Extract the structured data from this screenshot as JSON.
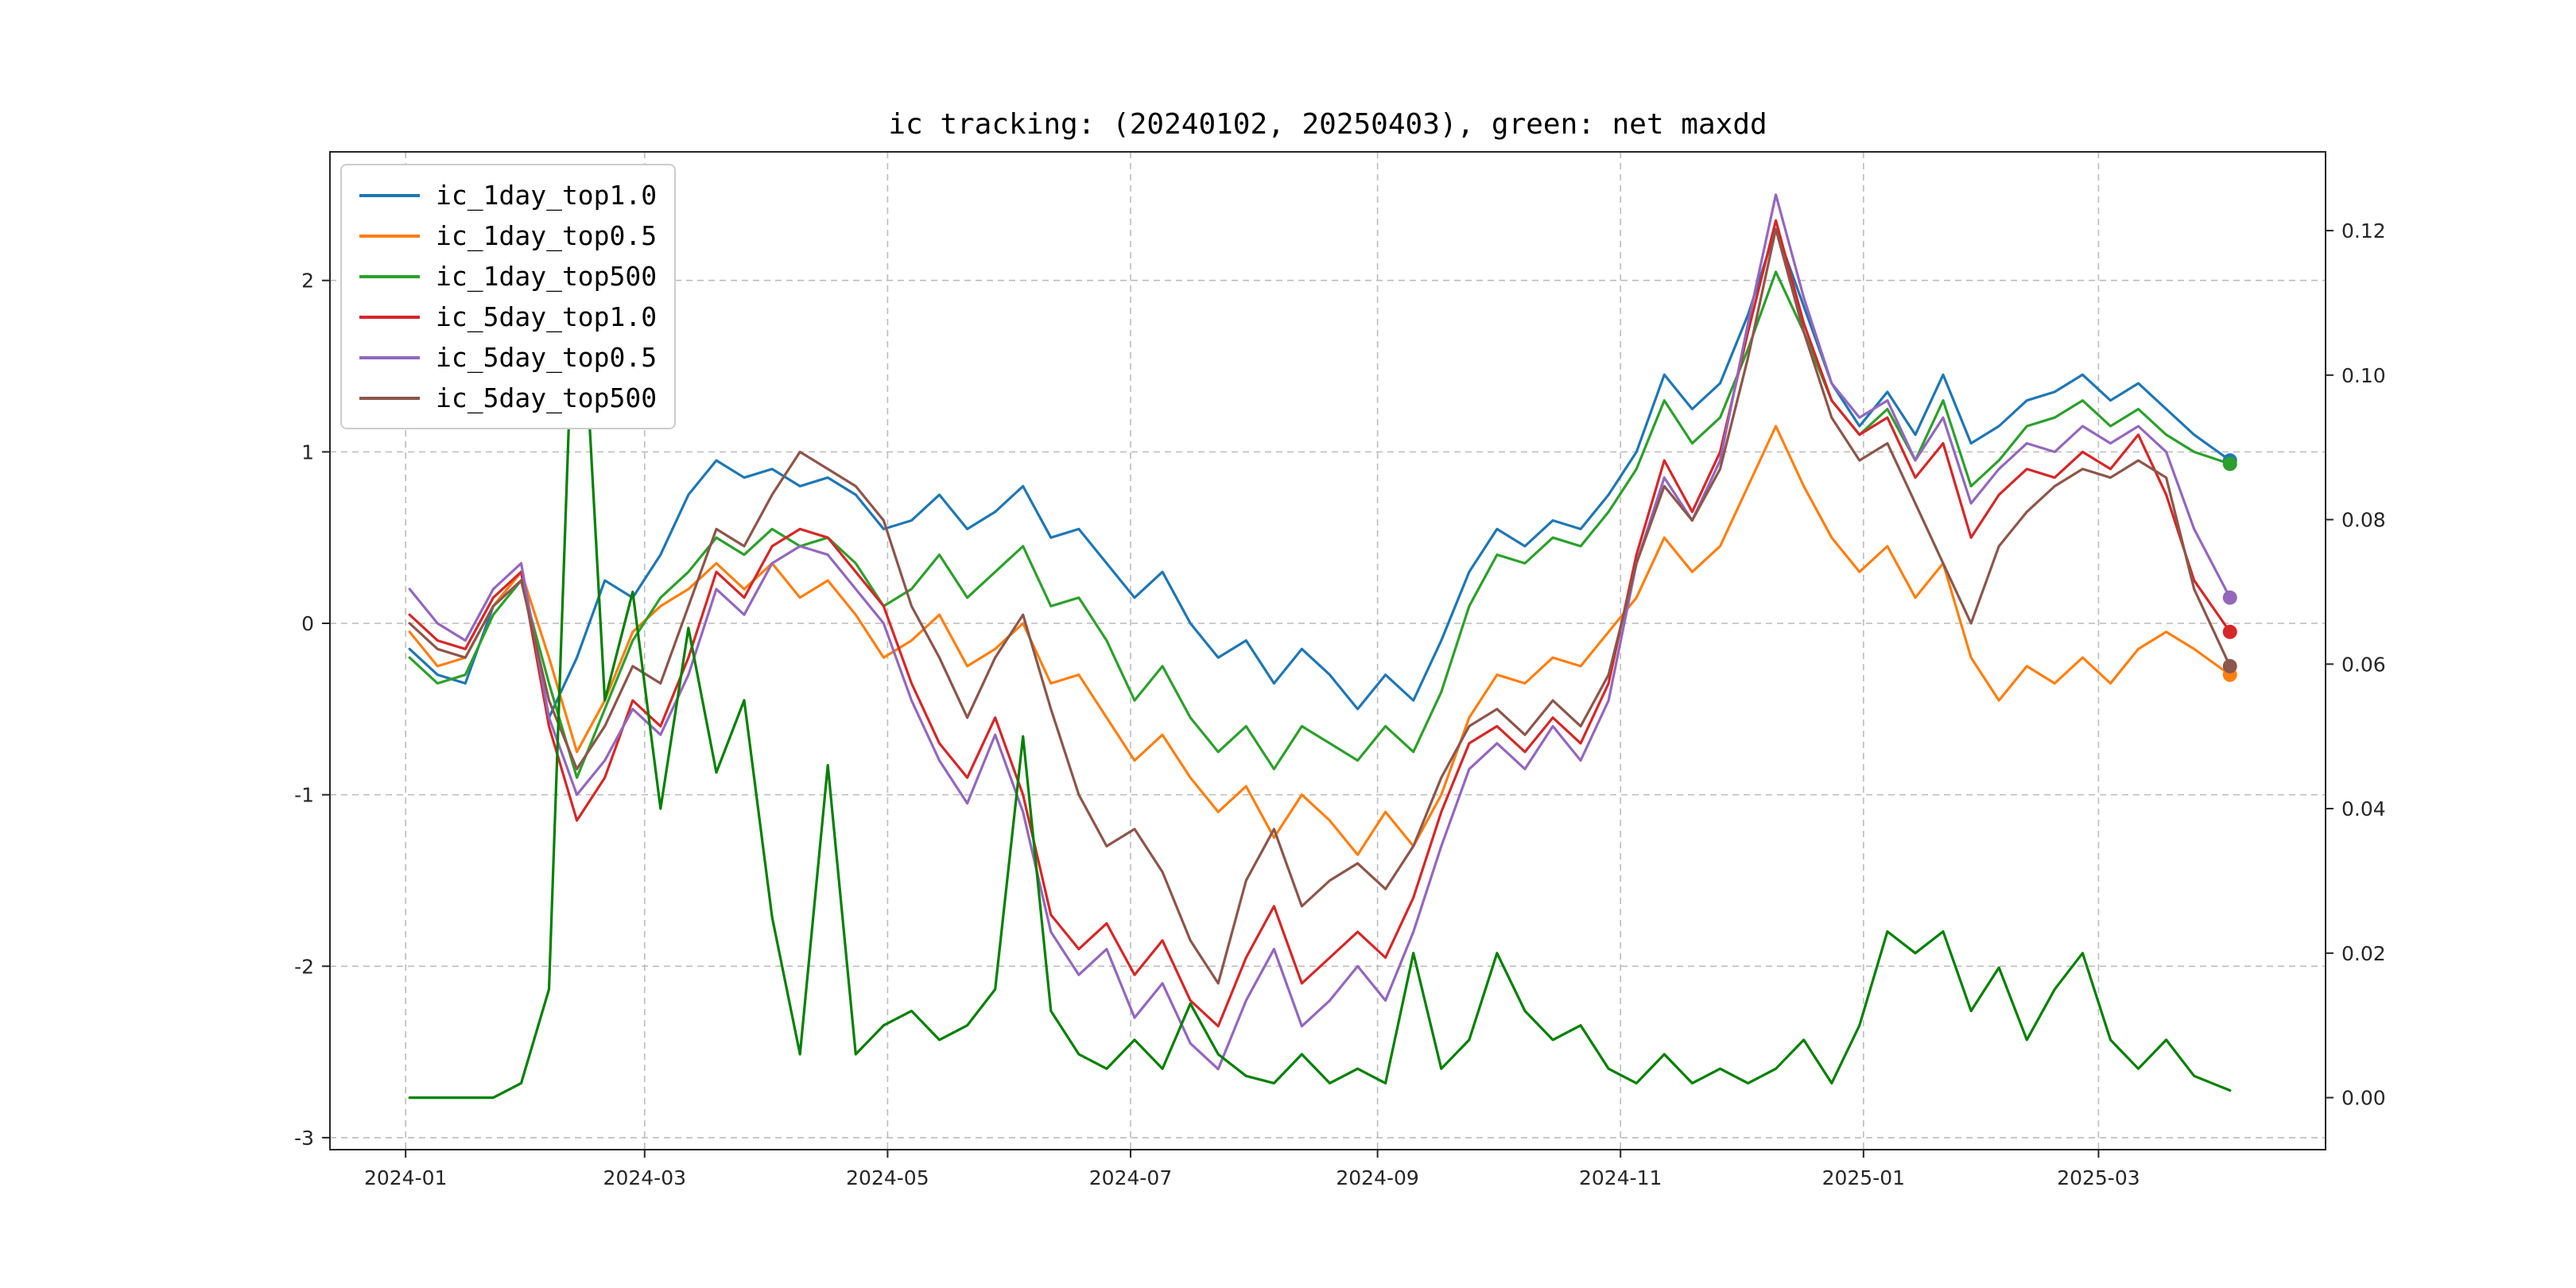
{
  "chart_data": {
    "type": "line",
    "title": "ic tracking: (20240102, 20250403), green: net maxdd",
    "grid": "dashed",
    "legend_position": "upper-left",
    "x_axis": {
      "range_days": [
        -20,
        481
      ],
      "tick_days": [
        -1,
        59,
        120,
        181,
        243,
        304,
        365,
        424
      ],
      "tick_labels": [
        "2024-01",
        "2024-03",
        "2024-05",
        "2024-07",
        "2024-09",
        "2024-11",
        "2025-01",
        "2025-03"
      ]
    },
    "left_axis": {
      "range": [
        -3.07,
        2.75
      ],
      "ticks": [
        -3,
        -2,
        -1,
        0,
        1,
        2
      ],
      "tick_labels": [
        "-3",
        "-2",
        "-1",
        "0",
        "1",
        "2"
      ]
    },
    "right_axis": {
      "range": [
        -0.0072,
        0.1309
      ],
      "ticks": [
        0,
        0.02,
        0.04,
        0.06,
        0.08,
        0.1,
        0.12
      ],
      "tick_labels": [
        "0.00",
        "0.02",
        "0.04",
        "0.06",
        "0.08",
        "0.10",
        "0.12"
      ]
    },
    "x_days": [
      0,
      7,
      14,
      21,
      28,
      35,
      42,
      49,
      56,
      63,
      70,
      77,
      84,
      91,
      98,
      105,
      112,
      119,
      126,
      133,
      140,
      147,
      154,
      161,
      168,
      175,
      182,
      189,
      196,
      203,
      210,
      217,
      224,
      231,
      238,
      245,
      252,
      259,
      266,
      273,
      280,
      287,
      294,
      301,
      308,
      315,
      322,
      329,
      336,
      343,
      350,
      357,
      364,
      371,
      378,
      385,
      392,
      399,
      406,
      413,
      420,
      427,
      434,
      441,
      448,
      457
    ],
    "series": [
      {
        "name": "ic_1day_top1.0",
        "color": "#1f77b4",
        "axis": "left",
        "values": [
          -0.15,
          -0.3,
          -0.35,
          0.1,
          0.3,
          -0.55,
          -0.2,
          0.25,
          0.15,
          0.4,
          0.75,
          0.95,
          0.85,
          0.9,
          0.8,
          0.85,
          0.75,
          0.55,
          0.6,
          0.75,
          0.55,
          0.65,
          0.8,
          0.5,
          0.55,
          0.35,
          0.15,
          0.3,
          0.0,
          -0.2,
          -0.1,
          -0.35,
          -0.15,
          -0.3,
          -0.5,
          -0.3,
          -0.45,
          -0.1,
          0.3,
          0.55,
          0.45,
          0.6,
          0.55,
          0.75,
          1.0,
          1.45,
          1.25,
          1.4,
          1.8,
          2.3,
          1.85,
          1.4,
          1.15,
          1.35,
          1.1,
          1.45,
          1.05,
          1.15,
          1.3,
          1.35,
          1.45,
          1.3,
          1.4,
          1.25,
          1.1,
          0.95
        ]
      },
      {
        "name": "ic_1day_top0.5",
        "color": "#ff7f0e",
        "axis": "left",
        "values": [
          -0.05,
          -0.25,
          -0.2,
          0.1,
          0.3,
          -0.2,
          -0.75,
          -0.45,
          -0.05,
          0.1,
          0.2,
          0.35,
          0.2,
          0.35,
          0.15,
          0.25,
          0.05,
          -0.2,
          -0.1,
          0.05,
          -0.25,
          -0.15,
          0.0,
          -0.35,
          -0.3,
          -0.55,
          -0.8,
          -0.65,
          -0.9,
          -1.1,
          -0.95,
          -1.25,
          -1.0,
          -1.15,
          -1.35,
          -1.1,
          -1.3,
          -1.0,
          -0.55,
          -0.3,
          -0.35,
          -0.2,
          -0.25,
          -0.05,
          0.15,
          0.5,
          0.3,
          0.45,
          0.8,
          1.15,
          0.8,
          0.5,
          0.3,
          0.45,
          0.15,
          0.35,
          -0.2,
          -0.45,
          -0.25,
          -0.35,
          -0.2,
          -0.35,
          -0.15,
          -0.05,
          -0.15,
          -0.3
        ]
      },
      {
        "name": "ic_1day_top500",
        "color": "#2ca02c",
        "axis": "left",
        "values": [
          -0.2,
          -0.35,
          -0.3,
          0.05,
          0.25,
          -0.35,
          -0.9,
          -0.5,
          -0.1,
          0.15,
          0.3,
          0.5,
          0.4,
          0.55,
          0.45,
          0.5,
          0.35,
          0.1,
          0.2,
          0.4,
          0.15,
          0.3,
          0.45,
          0.1,
          0.15,
          -0.1,
          -0.45,
          -0.25,
          -0.55,
          -0.75,
          -0.6,
          -0.85,
          -0.6,
          -0.7,
          -0.8,
          -0.6,
          -0.75,
          -0.4,
          0.1,
          0.4,
          0.35,
          0.5,
          0.45,
          0.65,
          0.9,
          1.3,
          1.05,
          1.2,
          1.6,
          2.05,
          1.7,
          1.3,
          1.1,
          1.25,
          0.95,
          1.3,
          0.8,
          0.95,
          1.15,
          1.2,
          1.3,
          1.15,
          1.25,
          1.1,
          1.0,
          0.93
        ]
      },
      {
        "name": "ic_5day_top1.0",
        "color": "#d62728",
        "axis": "left",
        "values": [
          0.05,
          -0.1,
          -0.15,
          0.15,
          0.3,
          -0.6,
          -1.15,
          -0.9,
          -0.45,
          -0.6,
          -0.2,
          0.3,
          0.15,
          0.45,
          0.55,
          0.5,
          0.3,
          0.1,
          -0.35,
          -0.7,
          -0.9,
          -0.55,
          -1.0,
          -1.7,
          -1.9,
          -1.75,
          -2.05,
          -1.85,
          -2.2,
          -2.35,
          -1.95,
          -1.65,
          -2.1,
          -1.95,
          -1.8,
          -1.95,
          -1.6,
          -1.1,
          -0.7,
          -0.6,
          -0.75,
          -0.55,
          -0.7,
          -0.35,
          0.4,
          0.95,
          0.65,
          1.0,
          1.7,
          2.35,
          1.75,
          1.3,
          1.1,
          1.2,
          0.85,
          1.05,
          0.5,
          0.75,
          0.9,
          0.85,
          1.0,
          0.9,
          1.1,
          0.75,
          0.25,
          -0.05
        ]
      },
      {
        "name": "ic_5day_top0.5",
        "color": "#9467bd",
        "axis": "left",
        "values": [
          0.2,
          0.0,
          -0.1,
          0.2,
          0.35,
          -0.55,
          -1.0,
          -0.8,
          -0.5,
          -0.65,
          -0.3,
          0.2,
          0.05,
          0.35,
          0.45,
          0.4,
          0.2,
          0.0,
          -0.45,
          -0.8,
          -1.05,
          -0.65,
          -1.1,
          -1.8,
          -2.05,
          -1.9,
          -2.3,
          -2.1,
          -2.45,
          -2.6,
          -2.2,
          -1.9,
          -2.35,
          -2.2,
          -2.0,
          -2.2,
          -1.8,
          -1.3,
          -0.85,
          -0.7,
          -0.85,
          -0.6,
          -0.8,
          -0.45,
          0.35,
          0.85,
          0.6,
          0.95,
          1.75,
          2.5,
          1.9,
          1.4,
          1.2,
          1.3,
          0.95,
          1.2,
          0.7,
          0.9,
          1.05,
          1.0,
          1.15,
          1.05,
          1.15,
          1.0,
          0.55,
          0.15
        ]
      },
      {
        "name": "ic_5day_top500",
        "color": "#8c564b",
        "axis": "left",
        "values": [
          0.0,
          -0.15,
          -0.2,
          0.1,
          0.25,
          -0.45,
          -0.85,
          -0.6,
          -0.25,
          -0.35,
          0.1,
          0.55,
          0.45,
          0.75,
          1.0,
          0.9,
          0.8,
          0.6,
          0.1,
          -0.2,
          -0.55,
          -0.2,
          0.05,
          -0.5,
          -1.0,
          -1.3,
          -1.2,
          -1.45,
          -1.85,
          -2.1,
          -1.5,
          -1.2,
          -1.65,
          -1.5,
          -1.4,
          -1.55,
          -1.3,
          -0.9,
          -0.6,
          -0.5,
          -0.65,
          -0.45,
          -0.6,
          -0.3,
          0.35,
          0.8,
          0.6,
          0.9,
          1.55,
          2.3,
          1.7,
          1.2,
          0.95,
          1.05,
          0.7,
          0.35,
          0.0,
          0.45,
          0.65,
          0.8,
          0.9,
          0.85,
          0.95,
          0.85,
          0.2,
          -0.25
        ]
      }
    ],
    "maxdd": {
      "name": "net maxdd",
      "color": "#008000",
      "axis": "right",
      "values": [
        0,
        0,
        0,
        0,
        0.002,
        0.015,
        0.125,
        0.055,
        0.07,
        0.04,
        0.065,
        0.045,
        0.055,
        0.025,
        0.006,
        0.046,
        0.006,
        0.01,
        0.012,
        0.008,
        0.01,
        0.015,
        0.05,
        0.012,
        0.006,
        0.004,
        0.008,
        0.004,
        0.013,
        0.006,
        0.003,
        0.002,
        0.006,
        0.002,
        0.004,
        0.002,
        0.02,
        0.004,
        0.008,
        0.02,
        0.012,
        0.008,
        0.01,
        0.004,
        0.002,
        0.006,
        0.002,
        0.004,
        0.002,
        0.004,
        0.008,
        0.002,
        0.01,
        0.023,
        0.02,
        0.023,
        0.012,
        0.018,
        0.008,
        0.015,
        0.02,
        0.008,
        0.004,
        0.008,
        0.003,
        0.001
      ]
    }
  }
}
